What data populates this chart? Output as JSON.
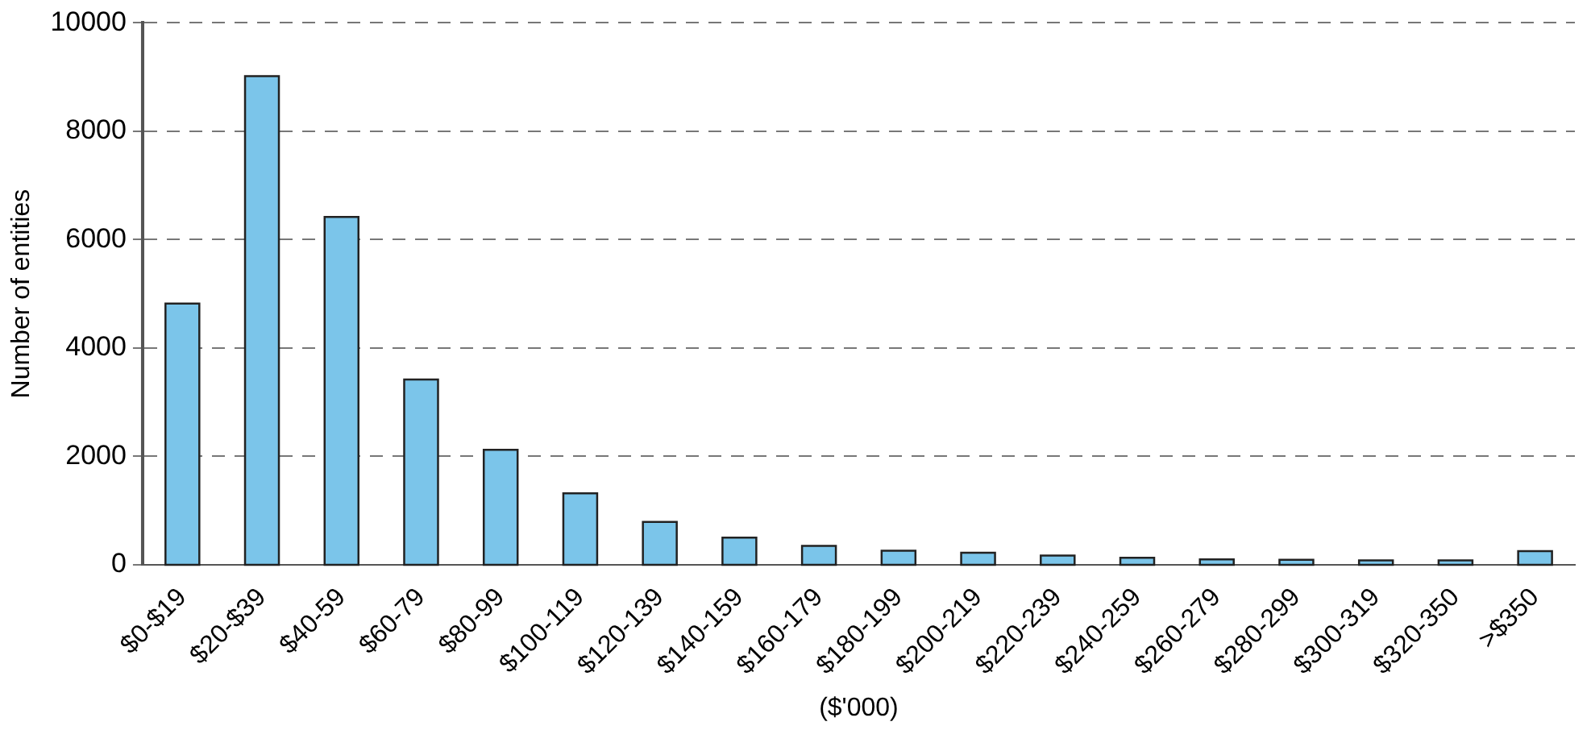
{
  "chart_data": {
    "type": "bar",
    "xlabel": "($'000)",
    "ylabel": "Number of entities",
    "categories": [
      "$0-$19",
      "$20-$39",
      "$40-59",
      "$60-79",
      "$80-99",
      "$100-119",
      "$120-139",
      "$140-159",
      "$160-179",
      "$180-199",
      "$200-219",
      "$220-239",
      "$240-259",
      "$260-279",
      "$280-299",
      "$300-319",
      "$320-350",
      ">$350"
    ],
    "values": [
      4800,
      9000,
      6400,
      3400,
      2100,
      1300,
      770,
      480,
      330,
      240,
      200,
      150,
      110,
      80,
      70,
      60,
      60,
      230
    ],
    "color": "#7bc5ea",
    "ylim": [
      0,
      10000
    ],
    "yticks": [
      0,
      2000,
      4000,
      6000,
      8000,
      10000
    ],
    "grid": "y",
    "legend": false
  }
}
